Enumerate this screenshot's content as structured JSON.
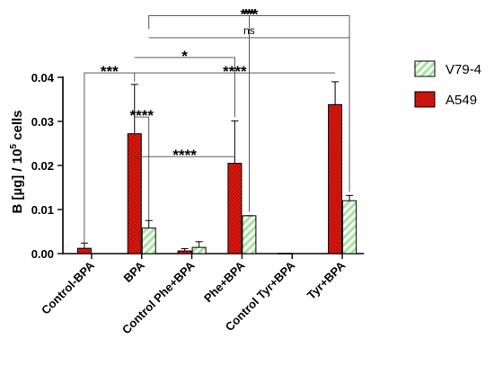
{
  "chart_data": {
    "type": "bar",
    "categories": [
      "Control-BPA",
      "BPA",
      "Control Phe+BPA",
      "Phe+BPA",
      "Control Tyr+BPA",
      "Tyr+BPA"
    ],
    "series": [
      {
        "name": "A549",
        "color": "#e8190f",
        "pattern": "red-crosshatch",
        "values": [
          0.0012,
          0.0272,
          0.0006,
          0.0205,
          0.0001,
          0.0338
        ],
        "errors": [
          0.0012,
          0.0112,
          0.0005,
          0.0096,
          0.0,
          0.0052
        ]
      },
      {
        "name": "V79-4",
        "color": "#a6e3a0",
        "pattern": "green-diagonal",
        "values": [
          0.0,
          0.0058,
          0.0014,
          0.0086,
          0.0,
          0.012
        ],
        "errors": [
          0.0,
          0.0017,
          0.0013,
          0.0,
          0.0,
          0.0012
        ]
      }
    ],
    "ylabel_main": "B [µg] / 10",
    "ylabel_sup": "5",
    "ylabel_tail": " cells",
    "ylim": [
      0,
      0.04
    ],
    "yticks": [
      "0.00",
      "0.01",
      "0.02",
      "0.03",
      "0.04"
    ],
    "ytick_values": [
      0,
      0.01,
      0.02,
      0.03,
      0.04
    ],
    "legend_position": "right",
    "grid": false,
    "significance": [
      {
        "label": "***",
        "x1": [
          1,
          1
        ],
        "x2": [
          5,
          1
        ],
        "y": 0.054,
        "drop1": 0.051,
        "drop2": 0.014
      },
      {
        "label": "**",
        "x1": [
          3,
          1
        ],
        "x2": [
          3,
          1
        ],
        "y": 0.054,
        "drop1": 0.02,
        "drop2": 0.0095
      },
      {
        "label": "ns",
        "x1": [
          1,
          1
        ],
        "x2": [
          5,
          1
        ],
        "y": 0.049,
        "drop1": 0.049,
        "drop2": 0.049
      },
      {
        "label": "*",
        "x1": [
          1,
          0
        ],
        "x2": [
          3,
          0
        ],
        "y": 0.0445,
        "drop1": 0.0445,
        "drop2": 0.031
      },
      {
        "label": "***",
        "x1": [
          0,
          0
        ],
        "x2": [
          1,
          0
        ],
        "y": 0.041,
        "drop1": 0.0025,
        "drop2": 0.039
      },
      {
        "label": "****",
        "x1": [
          1,
          0
        ],
        "x2": [
          5,
          0
        ],
        "y": 0.041,
        "drop1": 0.041,
        "drop2": 0.041
      },
      {
        "label": "****",
        "x1": [
          1,
          0
        ],
        "x2": [
          1,
          1
        ],
        "y": 0.031,
        "drop1": 0.031,
        "drop2": 0.0076
      },
      {
        "label": "****",
        "x1": [
          1,
          0
        ],
        "x2": [
          3,
          0
        ],
        "y": 0.022,
        "drop1": 0.022,
        "drop2": 0.022
      }
    ]
  }
}
